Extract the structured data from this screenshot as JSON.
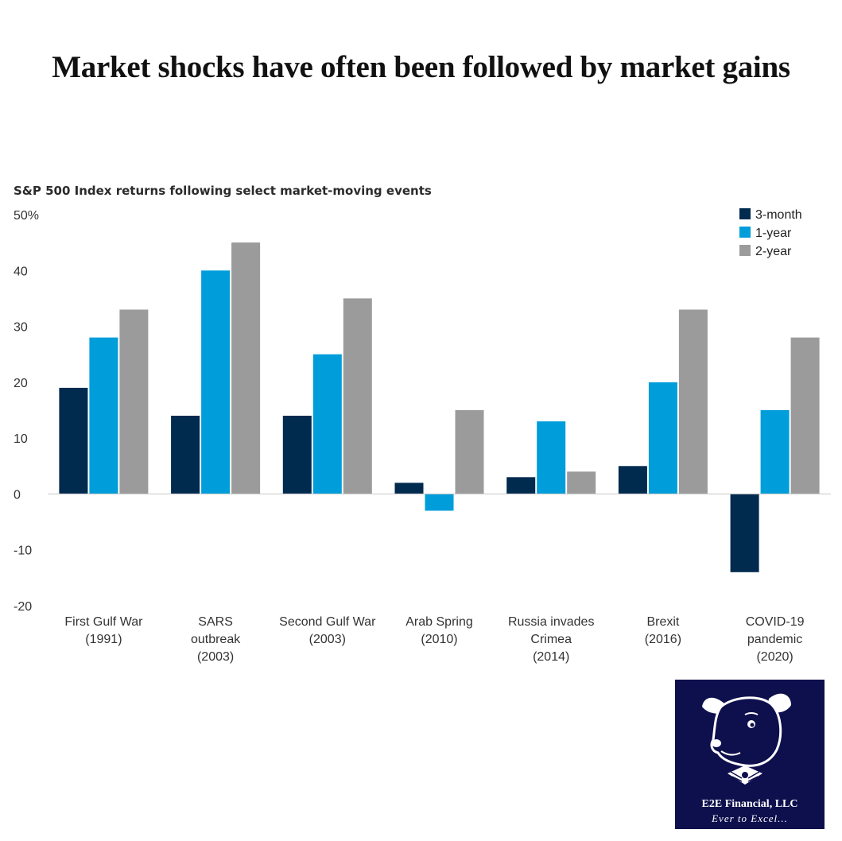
{
  "heading": "Market shocks have often been followed by market gains",
  "chart_data": {
    "type": "bar",
    "title": "S&P 500 Index returns following select market-moving events",
    "categories": [
      [
        "First Gulf War",
        "(1991)"
      ],
      [
        "SARS",
        "outbreak",
        "(2003)"
      ],
      [
        "Second Gulf War",
        "(2003)"
      ],
      [
        "Arab Spring",
        "(2010)"
      ],
      [
        "Russia invades",
        "Crimea",
        "(2014)"
      ],
      [
        "Brexit",
        "(2016)"
      ],
      [
        "COVID-19",
        "pandemic",
        "(2020)"
      ]
    ],
    "series": [
      {
        "name": "3-month",
        "color": "#002a4e",
        "values": [
          19,
          14,
          14,
          2,
          3,
          5,
          -14
        ]
      },
      {
        "name": "1-year",
        "color": "#009ddb",
        "values": [
          28,
          40,
          25,
          -3,
          13,
          20,
          15
        ]
      },
      {
        "name": "2-year",
        "color": "#9b9b9b",
        "values": [
          33,
          45,
          35,
          15,
          4,
          33,
          28
        ]
      }
    ],
    "yticks": [
      "50%",
      "40",
      "30",
      "20",
      "10",
      "0",
      "-10",
      "-20"
    ],
    "ylim": [
      -20,
      50
    ],
    "legend_position": "top-right",
    "grid": false
  },
  "logo": {
    "name": "E2E Financial, LLC",
    "tagline": "Ever to Excel..."
  }
}
